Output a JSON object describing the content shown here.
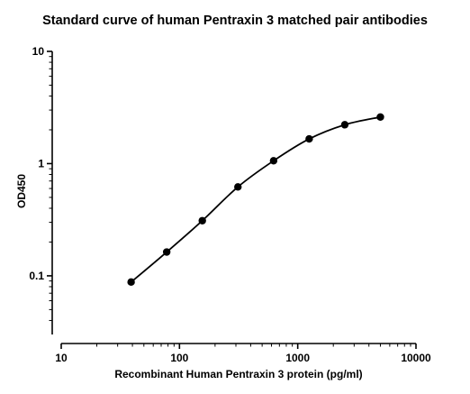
{
  "chart_data": {
    "type": "scatter",
    "title": "Standard curve of human Pentraxin 3 matched pair antibodies",
    "xlabel": "Recombinant Human Pentraxin 3 protein (pg/ml)",
    "ylabel": "OD450",
    "x_scale": "log",
    "y_scale": "log",
    "xlim": [
      10,
      10000
    ],
    "ylim": [
      0.03,
      10
    ],
    "x_ticks": [
      {
        "value": 10,
        "label": "10"
      },
      {
        "value": 100,
        "label": "100"
      },
      {
        "value": 1000,
        "label": "1000"
      },
      {
        "value": 10000,
        "label": "10000"
      }
    ],
    "y_ticks": [
      {
        "value": 0.1,
        "label": "0.1"
      },
      {
        "value": 1,
        "label": "1"
      },
      {
        "value": 10,
        "label": "10"
      }
    ],
    "grid": false,
    "legend": "none",
    "fit_curve": true,
    "marker_color": "#000000",
    "series": [
      {
        "x": [
          39,
          78,
          156,
          312,
          625,
          1250,
          2500,
          5000
        ],
        "y": [
          0.088,
          0.163,
          0.31,
          0.62,
          1.06,
          1.66,
          2.22,
          2.6
        ]
      }
    ]
  }
}
